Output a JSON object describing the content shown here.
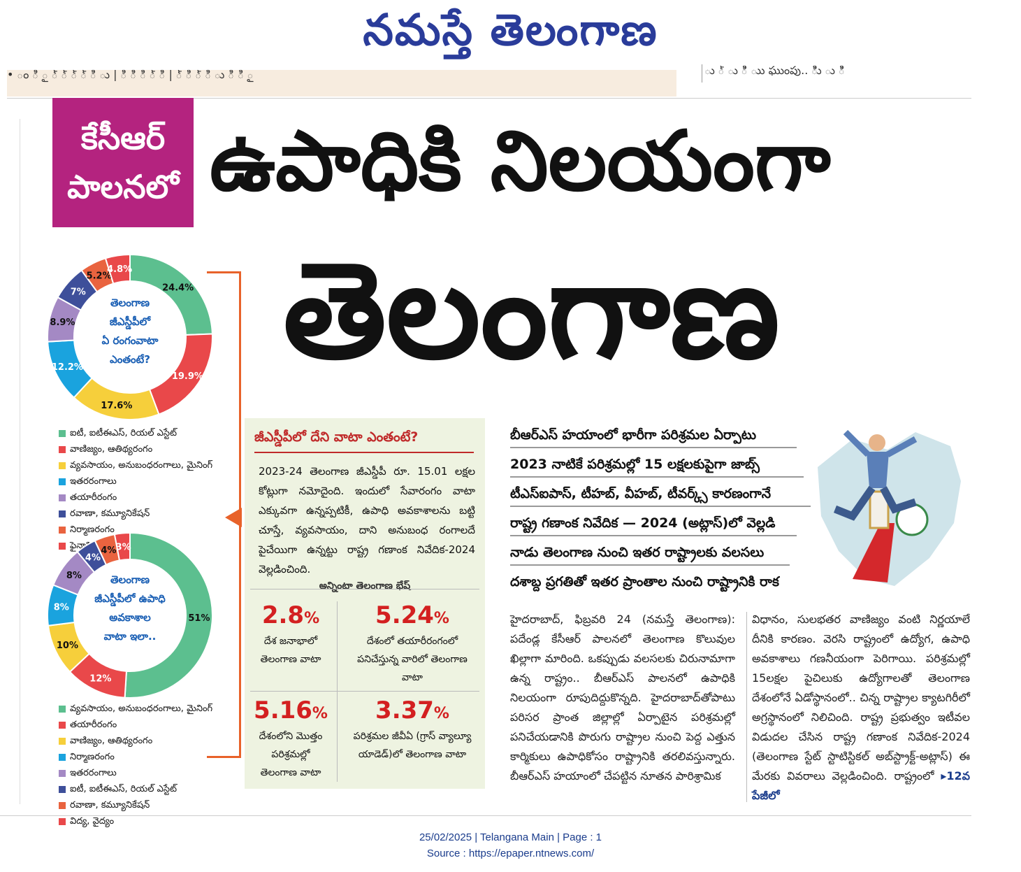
{
  "masthead": "నమస్తే తెలంగాణ",
  "strip": {
    "left": "• ం   ి ౖ   ్ ్ ్  ్ ి   ు   |   ి ి    ి  ్  ి |  ్  ి   ్ ి ు   ి ి  ౖ",
    "right": "ు   ్ ు  ిి   ుు  ఘుంపు..  ిిు ు ిి"
  },
  "tag": {
    "line1": "కేసీఆర్",
    "line2": "పాలనలో"
  },
  "headline": {
    "line1": "ఉపాధికి నిలయంగా",
    "line2": "తెలంగాణ"
  },
  "donut1": {
    "center": [
      "తెలంగాణ",
      "జీఎస్డీపీలో",
      "ఏ రంగంవాటా",
      "ఎంతంటే?"
    ],
    "labels": [
      "24.4%",
      "19.9%",
      "17.6%",
      "12.2%",
      "8.9%",
      "7%",
      "5.2%",
      "4.8%"
    ],
    "colors": [
      "#5cbf8f",
      "#e9484a",
      "#f6cf3b",
      "#1aa3de",
      "#a489c4",
      "#3e4f9a",
      "#e9633f",
      "#e9484a"
    ],
    "legend": [
      "ఐటీ, ఐటీఈఎస్, రియల్ ఎస్టేట్",
      "వాణిజ్యం, ఆతిథ్యరంగం",
      "వ్యవసాయం, అనుబంధరంగాలు, మైనింగ్",
      "ఇతరరంగాలు",
      "తయారీరంగం",
      "రవాణా, కమ్యూనికేషన్",
      "నిర్మాణరంగం",
      "ఫైనాన్షియల్ సర్వీసులు"
    ]
  },
  "chart_data": [
    {
      "type": "pie",
      "categories": [
        "ఐటీ, ఐటీఈఎస్, రియల్ ఎస్టేట్",
        "వాణిజ్యం, ఆతిథ్యరంగం",
        "వ్యవసాయం, అనుబంధరంగాలు, మైనింగ్",
        "ఇతరరంగాలు",
        "తయారీరంగం",
        "రవాణా, కమ్యూనికేషన్",
        "నిర్మాణరంగం",
        "ఫైనాన్షియల్ సర్వీసులు"
      ],
      "values": [
        24.4,
        19.9,
        17.6,
        12.2,
        8.9,
        7,
        5.2,
        4.8
      ]
    },
    {
      "type": "pie",
      "categories": [
        "వ్యవసాయం, అనుబంధరంగాలు, మైనింగ్",
        "తయారీరంగం",
        "వాణిజ్యం, ఆతిథ్యరంగం",
        "నిర్మాణరంగం",
        "ఇతరరంగాలు",
        "ఐటీ, ఐటీఈఎస్, రియల్ ఎస్టేట్",
        "రవాణా, కమ్యూనికేషన్",
        "విద్య, వైద్యం"
      ],
      "values": [
        51,
        12,
        10,
        8,
        8,
        4,
        4,
        3
      ]
    }
  ],
  "donut2": {
    "center": [
      "తెలంగాణ",
      "జీఎస్డీపీలో ఉపాధి",
      "అవకాశాల",
      "వాటా ఇలా.."
    ],
    "labels": [
      "51%",
      "12%",
      "10%",
      "8%",
      "8%",
      "4%",
      "4%",
      "3%"
    ],
    "colors": [
      "#5cbf8f",
      "#e9484a",
      "#f6cf3b",
      "#1aa3de",
      "#a489c4",
      "#3e4f9a",
      "#e9633f",
      "#e9484a"
    ],
    "legend": [
      "వ్యవసాయం, అనుబంధరంగాలు, మైనింగ్",
      "తయారీరంగం",
      "వాణిజ్యం, ఆతిథ్యరంగం",
      "నిర్మాణరంగం",
      "ఇతరరంగాలు",
      "ఐటీ, ఐటీఈఎస్, రియల్ ఎస్టేట్",
      "రవాణా, కమ్యూనికేషన్",
      "విద్య, వైద్యం"
    ]
  },
  "box": {
    "title": "జీఎస్డీపీలో దేని వాటా ఎంతంటే?",
    "text": "2023-24 తెలంగాణ జీఎస్డీపీ రూ. 15.01 లక్షల కోట్లుగా నమోదైంది. ఇందులో సేవారంగం వాటా ఎక్కువగా ఉన్నప్పటికీ, ఉపాధి అవకాశాలను బట్టి చూస్తే, వ్యవసాయం, దాని అనుబంధ రంగాలదే పైచేయిగా ఉన్నట్టు రాష్ట్ర గణాంక నివేదిక-2024 వెల్లడించింది.",
    "subtitle": "అన్నింటా తెలంగాణ భేష్",
    "stats": [
      {
        "num": "2.8",
        "pct": "%",
        "text": "దేశ జనాభాలో తెలంగాణ వాటా"
      },
      {
        "num": "5.24",
        "pct": "%",
        "text": "దేశంలో తయారీరంగంలో పనిచేస్తున్న వారిలో తెలంగాణ వాటా"
      },
      {
        "num": "5.16",
        "pct": "%",
        "text": "దేశంలోని మొత్తం పరిశ్రమల్లో తెలంగాణ వాటా"
      },
      {
        "num": "3.37",
        "pct": "%",
        "text": "పరిశ్రమల జీవీఏ (గ్రాస్ వ్యాల్యూ యాడెడ్)లో తెలంగాణ వాటా"
      }
    ]
  },
  "bullets": [
    "బీఆర్ఎస్ హయాంలో భారీగా పరిశ్రమల ఏర్పాటు",
    "2023 నాటికే పరిశ్రమల్లో 15 లక్షలకుపైగా జాబ్స్",
    "టీఎస్ఐపాస్, టీహబ్, వీహబ్, టీవర్క్స్ కారణంగానే",
    "రాష్ట్ర గణాంక నివేదిక — 2024 (అట్లాస్)లో వెల్లడి",
    "నాడు తెలంగాణ నుంచి ఇతర రాష్ట్రాలకు వలసలు",
    "దశాబ్ద ప్రగతితో ఇతర ప్రాంతాల నుంచి రాష్ట్రానికి రాక"
  ],
  "body": {
    "col1": "హైదరాబాద్, ఫిబ్రవరి 24 (నమస్తే తెలంగాణ): పదేండ్ల కేసీఆర్ పాలనలో తెలంగాణ కొలువుల ఖిల్లాగా మారింది. ఒకప్పుడు వలసలకు చిరునామాగా ఉన్న రాష్ట్రం.. బీఆర్ఎస్ పాలనలో ఉపాధికి నిలయంగా రూపుదిద్దుకొన్నది. హైదరాబాద్‌తోపాటు పరిసర ప్రాంత జిల్లాల్లో ఏర్పాటైన పరిశ్రమల్లో పనిచేయడానికి పొరుగు రాష్ట్రాల నుంచి పెద్ద ఎత్తున కార్మికులు ఉపాధికోసం రాష్ట్రానికి తరలివస్తున్నారు. బీఆర్ఎస్ హయాంలో చేపట్టిన నూతన పారిశ్రామిక",
    "col2": "విధానం, సులభతర వాణిజ్యం వంటి నిర్ణయాలే దీనికి కారణం. వెరసి రాష్ట్రంలో ఉద్యోగ, ఉపాధి అవకాశాలు గణనీయంగా పెరిగాయి. పరిశ్రమల్లో 15లక్షల పైచిలుకు ఉద్యోగాలతో తెలంగాణ దేశంలోనే ఏడోస్థానంలో.. చిన్న రాష్ట్రాల క్యాటగిరీలో అగ్రస్థానంలో నిలిచింది. రాష్ట్ర ప్రభుత్వం ఇటీవల విడుదల చేసిన రాష్ట్ర గణాంక నివేదిక-2024 (తెలంగాణ స్టేట్ స్టాటిస్టికల్ అబ్‌స్ట్రాక్ట్-అట్లాస్) ఈ మేరకు వివరాలు వెల్లడించింది. రాష్ట్రంలో",
    "continue": "▸12వ పేజీలో"
  },
  "footer": {
    "line1": "25/02/2025 | Telangana Main | Page : 1",
    "line2": "Source : https://epaper.ntnews.com/"
  }
}
